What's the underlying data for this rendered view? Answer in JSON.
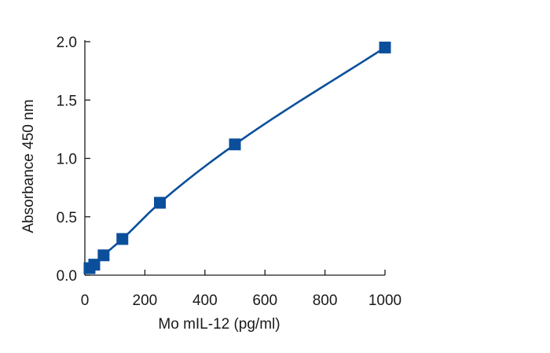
{
  "chart_data": {
    "type": "line",
    "title": "",
    "xlabel": "Mo mIL-12 (pg/ml)",
    "ylabel": "Absorbance 450 nm",
    "xlim": [
      0,
      1000
    ],
    "ylim": [
      0,
      2.0
    ],
    "x_ticks": [
      0,
      200,
      400,
      600,
      800,
      1000
    ],
    "x_tick_labels": [
      "0",
      "200",
      "400",
      "600",
      "800",
      "1000"
    ],
    "y_ticks": [
      0,
      0.5,
      1.0,
      1.5,
      2.0
    ],
    "y_tick_labels": [
      "0.0",
      "0.5",
      "1.0",
      "1.5",
      "2.0"
    ],
    "grid": false,
    "legend": "none",
    "color": "#0b4f9c",
    "marker": "square",
    "series": [
      {
        "x": [
          15.6,
          31.3,
          62.5,
          125,
          250,
          500,
          1000
        ],
        "y": [
          0.06,
          0.09,
          0.17,
          0.31,
          0.62,
          1.12,
          1.95
        ]
      }
    ],
    "fit_curve": true
  }
}
